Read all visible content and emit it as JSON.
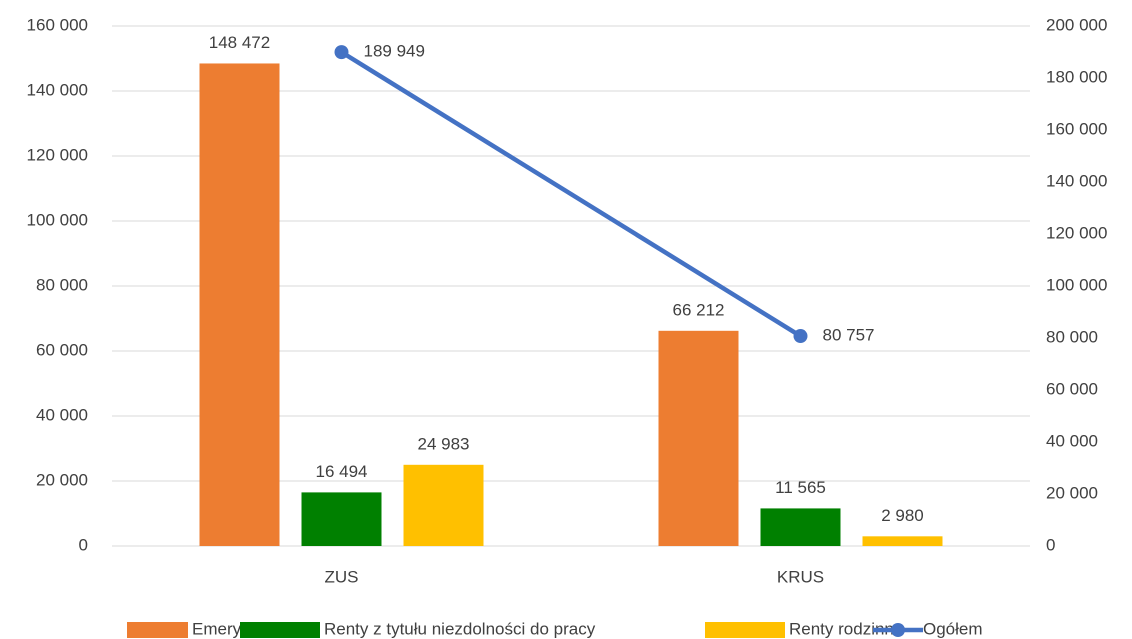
{
  "chart_data": {
    "type": "bar",
    "categories": [
      "ZUS",
      "KRUS"
    ],
    "series": [
      {
        "name": "Emerytury",
        "color": "#ED7D31",
        "values": [
          148472,
          66212
        ],
        "value_labels": [
          "148 472",
          "66 212"
        ]
      },
      {
        "name": "Renty z tytułu niezdolności do pracy",
        "color": "#008000",
        "values": [
          16494,
          11565
        ],
        "value_labels": [
          "16 494",
          "11 565"
        ]
      },
      {
        "name": "Renty rodzinne",
        "color": "#FFC000",
        "values": [
          24983,
          2980
        ],
        "value_labels": [
          "24 983",
          "2 980"
        ]
      },
      {
        "name": "Ogółem",
        "color": "#4472C4",
        "type": "line",
        "axis": "y2",
        "values": [
          189949,
          80757
        ],
        "value_labels": [
          "189 949",
          "80 757"
        ]
      }
    ],
    "ylim": [
      0,
      160000
    ],
    "yticks": [
      {
        "value": 0,
        "label": "0"
      },
      {
        "value": 20000,
        "label": "20 000"
      },
      {
        "value": 40000,
        "label": "40 000"
      },
      {
        "value": 60000,
        "label": "60 000"
      },
      {
        "value": 80000,
        "label": "80 000"
      },
      {
        "value": 100000,
        "label": "100 000"
      },
      {
        "value": 120000,
        "label": "120 000"
      },
      {
        "value": 140000,
        "label": "140 000"
      },
      {
        "value": 160000,
        "label": "160 000"
      }
    ],
    "y2lim": [
      0,
      200000
    ],
    "y2ticks": [
      {
        "value": 0,
        "label": "0"
      },
      {
        "value": 20000,
        "label": "20 000"
      },
      {
        "value": 40000,
        "label": "40 000"
      },
      {
        "value": 60000,
        "label": "60 000"
      },
      {
        "value": 80000,
        "label": "80 000"
      },
      {
        "value": 100000,
        "label": "100 000"
      },
      {
        "value": 120000,
        "label": "120 000"
      },
      {
        "value": 140000,
        "label": "140 000"
      },
      {
        "value": 160000,
        "label": "160 000"
      },
      {
        "value": 180000,
        "label": "180 000"
      },
      {
        "value": 200000,
        "label": "200 000"
      }
    ],
    "grid": true,
    "legend": "bottom"
  }
}
